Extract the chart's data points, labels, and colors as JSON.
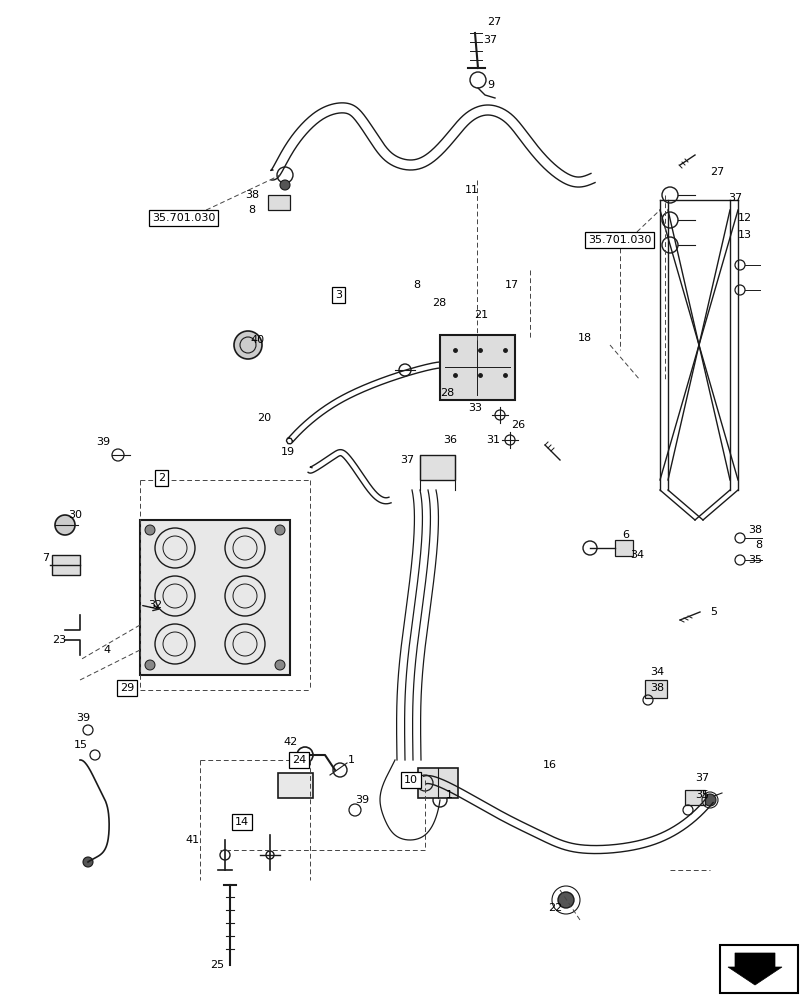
{
  "background_color": "#ffffff",
  "line_color": "#1a1a1a",
  "dash_color": "#444444",
  "fig_width": 8.12,
  "fig_height": 10.0,
  "dpi": 100
}
